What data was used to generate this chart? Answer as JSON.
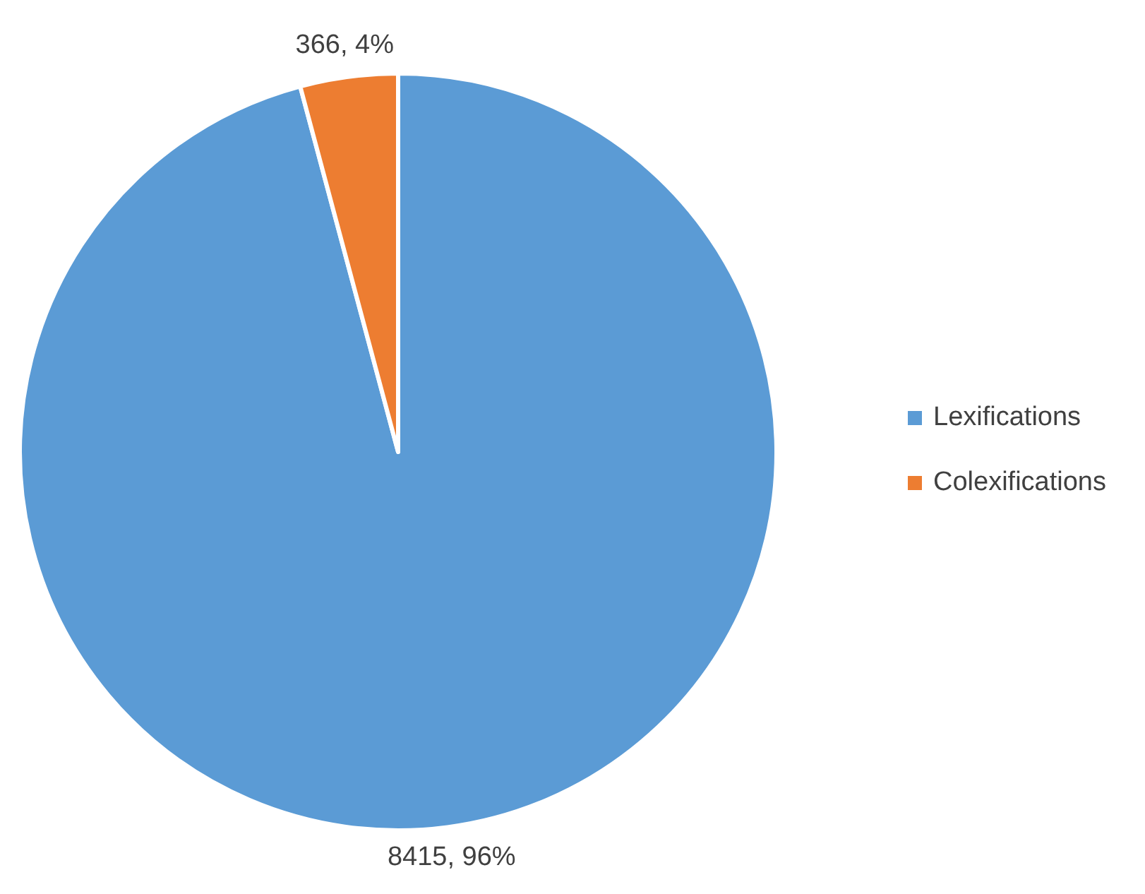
{
  "chart_data": {
    "type": "pie",
    "categories": [
      "Lexifications",
      "Colexifications"
    ],
    "values": [
      8415,
      366
    ],
    "colors": [
      "#5b9bd5",
      "#ed7d31"
    ],
    "value_labels": [
      "8415, 96%",
      "366, 4%"
    ],
    "legend": "right"
  }
}
